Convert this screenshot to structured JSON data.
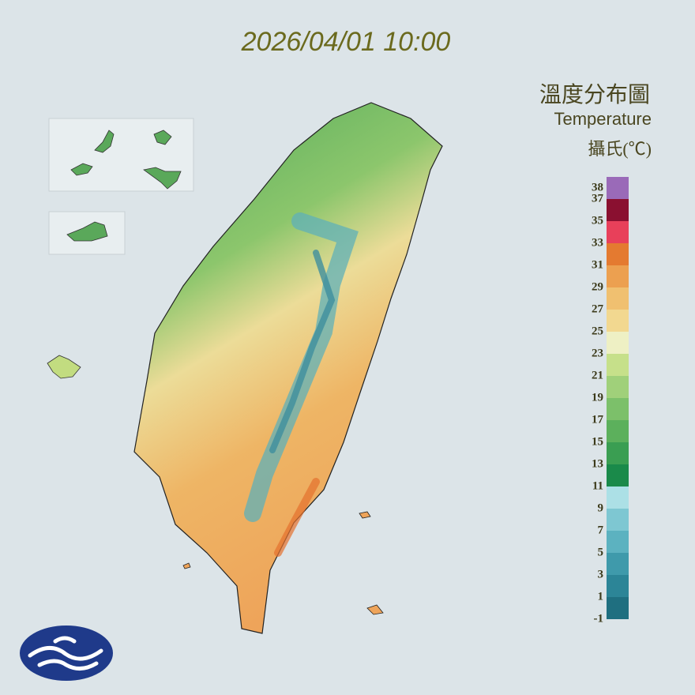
{
  "title": "2026/04/01 10:00",
  "legend": {
    "title": "溫度分布圖",
    "subtitle": "Temperature",
    "unit": "攝氏(℃)",
    "labels": [
      38,
      37,
      35,
      33,
      31,
      29,
      27,
      25,
      23,
      21,
      19,
      17,
      15,
      13,
      11,
      9,
      7,
      5,
      3,
      1,
      -1
    ],
    "colors": [
      "#1f6f80",
      "#2c8597",
      "#3f9aab",
      "#5cb2c0",
      "#7ec7d2",
      "#ace0e6",
      "#1a8a4a",
      "#3a9e52",
      "#5cb05c",
      "#7cc06a",
      "#a0d07a",
      "#c6e08a",
      "#eef0c4",
      "#f2d890",
      "#f0c070",
      "#eca050",
      "#e47a30",
      "#e8405a",
      "#8a1030",
      "#9a6ab8"
    ]
  }
}
